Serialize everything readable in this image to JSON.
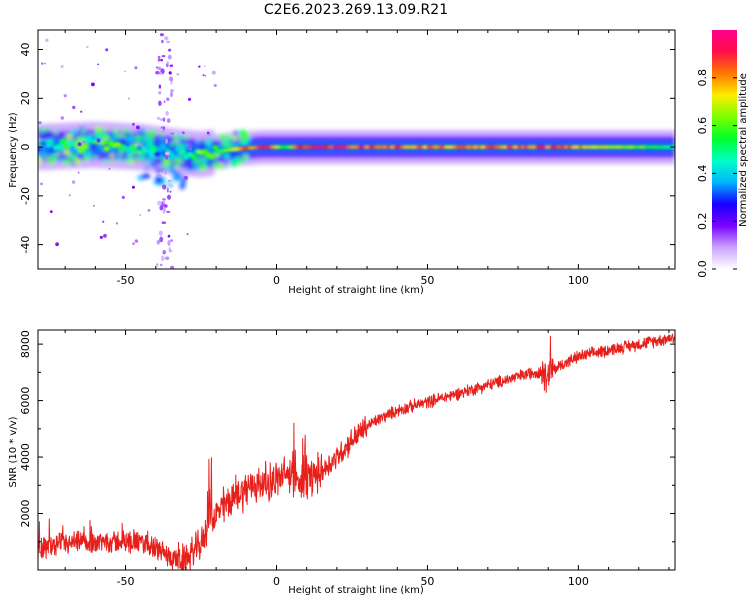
{
  "page": {
    "title": "C2E6.2023.269.13.09.R21"
  },
  "chart_data": [
    {
      "type": "heatmap",
      "title": "C2E6.2023.269.13.09.R21",
      "xlabel": "Height of straight line (km)",
      "ylabel": "Frequency (Hz)",
      "xlim": [
        -79,
        132
      ],
      "ylim": [
        -50,
        48
      ],
      "xticks": [
        -50,
        0,
        50,
        100
      ],
      "yticks": [
        -40,
        -20,
        0,
        20,
        40
      ],
      "colorbar": {
        "label": "Normalized spectral amplitude",
        "range": [
          0,
          1
        ],
        "ticks": [
          "0.0",
          "0.2",
          "0.4",
          "0.6",
          "0.8"
        ],
        "colors": [
          "#ffffff",
          "#c9a2ff",
          "#7b00ff",
          "#1500ff",
          "#00b7ff",
          "#00ffc4",
          "#00ff2b",
          "#7dff00",
          "#ffed00",
          "#ff7700",
          "#ff0d47",
          "#ff0090"
        ]
      },
      "ridge": [
        {
          "x": -79,
          "freq": 0,
          "amp": 0.4
        },
        {
          "x": -60,
          "freq": 1,
          "amp": 0.55
        },
        {
          "x": -45,
          "freq": 0,
          "amp": 0.45
        },
        {
          "x": -33,
          "freq": -2,
          "amp": 0.35
        },
        {
          "x": -25,
          "freq": -3,
          "amp": 0.5
        },
        {
          "x": -15,
          "freq": -1,
          "amp": 0.6
        },
        {
          "x": -5,
          "freq": 0,
          "amp": 0.95
        },
        {
          "x": 3,
          "freq": 0,
          "amp": 0.55
        },
        {
          "x": 10,
          "freq": 0,
          "amp": 0.95
        },
        {
          "x": 30,
          "freq": 0,
          "amp": 0.85
        },
        {
          "x": 60,
          "freq": 0,
          "amp": 0.75
        },
        {
          "x": 90,
          "freq": 0,
          "amp": 0.85
        },
        {
          "x": 110,
          "freq": 0,
          "amp": 0.65
        },
        {
          "x": 132,
          "freq": 0,
          "amp": 0.5
        }
      ]
    },
    {
      "type": "line",
      "xlabel": "Height of straight line (km)",
      "ylabel": "SNR (10 * v/v)",
      "xlim": [
        -79,
        132
      ],
      "ylim": [
        0,
        8500
      ],
      "xticks": [
        -50,
        0,
        50,
        100
      ],
      "yticks": [
        2000,
        4000,
        6000,
        8000
      ],
      "series": [
        {
          "name": "SNR",
          "color": "#e8201c",
          "points": [
            [
              -79,
              800
            ],
            [
              -70,
              900
            ],
            [
              -60,
              1000
            ],
            [
              -50,
              1000
            ],
            [
              -42,
              900
            ],
            [
              -36,
              500
            ],
            [
              -31,
              300
            ],
            [
              -28,
              600
            ],
            [
              -25,
              900
            ],
            [
              -22,
              1700
            ],
            [
              -18,
              2200
            ],
            [
              -13,
              2700
            ],
            [
              -8,
              3000
            ],
            [
              -3,
              3100
            ],
            [
              0,
              3200
            ],
            [
              4,
              3400
            ],
            [
              8,
              3000
            ],
            [
              12,
              3300
            ],
            [
              16,
              3600
            ],
            [
              20,
              4000
            ],
            [
              25,
              4600
            ],
            [
              30,
              5100
            ],
            [
              35,
              5400
            ],
            [
              40,
              5650
            ],
            [
              45,
              5800
            ],
            [
              50,
              5950
            ],
            [
              60,
              6250
            ],
            [
              70,
              6550
            ],
            [
              80,
              6850
            ],
            [
              87,
              7050
            ],
            [
              90,
              7000
            ],
            [
              95,
              7300
            ],
            [
              100,
              7550
            ],
            [
              110,
              7800
            ],
            [
              120,
              8000
            ],
            [
              132,
              8250
            ]
          ]
        }
      ]
    }
  ]
}
